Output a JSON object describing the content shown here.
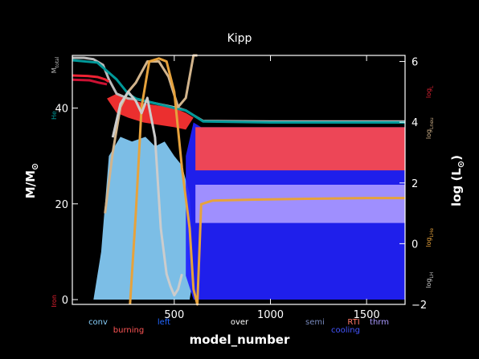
{
  "chart_data": {
    "type": "area",
    "title": "Kipp",
    "xlabel": "model_number",
    "ylabel_left": "M/M",
    "ylabel_left_subscript": "⊙",
    "ylabel_right": "log (L",
    "ylabel_right_subscript": "⊙",
    "ylabel_right_close": ")",
    "xlim": [
      -30,
      1700
    ],
    "ylim_left": [
      -1,
      51
    ],
    "ylim_right": [
      -2,
      6.2
    ],
    "x_ticks": [
      500,
      1000,
      1500
    ],
    "y_ticks_left": [
      0,
      20,
      40
    ],
    "y_ticks_right": [
      -2,
      0,
      2,
      4,
      6
    ],
    "x_tick_labels": [
      "500",
      "1000",
      "1500"
    ],
    "y_tick_labels_left": [
      "0",
      "20",
      "40"
    ],
    "y_tick_labels_right": [
      "−2",
      "0",
      "2",
      "4",
      "6"
    ],
    "left_axis_labels": [
      {
        "text": "M",
        "sub": "total",
        "color": "#bbbbbb",
        "y": 49
      },
      {
        "text": "He",
        "sub": "",
        "color": "#009999",
        "y": 38.5
      },
      {
        "text": "Iron",
        "sub": "",
        "color": "#ee2233",
        "y": -0.3
      }
    ],
    "right_axis_labels": [
      {
        "text": "log",
        "sub": "L",
        "color": "#dd2233",
        "y": 5.0
      },
      {
        "text": "log",
        "sub": "Lneu",
        "color": "#d2b48c",
        "y": 3.8
      },
      {
        "text": "log",
        "sub": "LHe",
        "color": "#e6a23c",
        "y": 0.2
      },
      {
        "text": "log",
        "sub": "LH",
        "color": "#cccccc",
        "y": -1.2
      }
    ],
    "legend": [
      {
        "label": "conv",
        "color": "#87cefa"
      },
      {
        "label": "burning",
        "color": "#ff5555"
      },
      {
        "label": "left",
        "color": "#2266ff"
      },
      {
        "label": "over",
        "color": "#ffffff"
      },
      {
        "label": "semi",
        "color": "#7788bb"
      },
      {
        "label": "cooling",
        "color": "#4455ff"
      },
      {
        "label": "RTI",
        "color": "#ff7766"
      },
      {
        "label": "thrm",
        "color": "#aa99ff"
      }
    ],
    "series": [
      {
        "name": "M_total",
        "axis": "left",
        "color": "#bbbbbb",
        "x": [
          -30,
          30,
          80,
          130,
          160,
          200,
          260,
          310,
          400,
          520,
          560,
          600,
          650,
          1000,
          1700
        ],
        "y": [
          50.5,
          50.5,
          50.2,
          49,
          46,
          43,
          42,
          41.8,
          41,
          40,
          39.5,
          38.5,
          37.3,
          37.2,
          37.2
        ]
      },
      {
        "name": "He core",
        "axis": "left",
        "color": "#009999",
        "x": [
          -30,
          100,
          200,
          260,
          300,
          400,
          500,
          560,
          600,
          650,
          1000,
          1700
        ],
        "y": [
          50,
          49.5,
          46,
          43,
          42,
          41,
          40,
          39.5,
          38.5,
          37.2,
          37,
          37
        ]
      },
      {
        "name": "Iron core",
        "axis": "left",
        "color": "#ee2233",
        "x": [
          -30,
          50,
          100,
          140,
          160
        ],
        "y": [
          46.8,
          46.7,
          46.5,
          46,
          45.5
        ]
      },
      {
        "name": "log L",
        "axis": "right",
        "color": "#cc1133",
        "x": [
          -30,
          60,
          110,
          150
        ],
        "y": [
          5.4,
          5.38,
          5.3,
          5.25
        ]
      },
      {
        "name": "log Lneu",
        "axis": "right",
        "color": "#d2b48c",
        "x": [
          140,
          180,
          220,
          260,
          300,
          360,
          420,
          470,
          520,
          560,
          600,
          620
        ],
        "y": [
          1.0,
          3.0,
          4.5,
          5.0,
          5.3,
          6.0,
          6.0,
          5.5,
          4.5,
          4.8,
          6.2,
          6.2
        ]
      },
      {
        "name": "log LHe",
        "axis": "right",
        "color": "#e6a23c",
        "x": [
          270,
          300,
          330,
          370,
          420,
          460,
          500,
          540,
          580,
          600,
          620,
          640,
          700,
          900,
          1200,
          1500,
          1700
        ],
        "y": [
          -2,
          1.0,
          4.5,
          6.0,
          6.1,
          6.0,
          5.0,
          2.5,
          0.5,
          -1.5,
          -2,
          1.3,
          1.42,
          1.45,
          1.48,
          1.5,
          1.5
        ]
      },
      {
        "name": "log LH",
        "axis": "right",
        "color": "#cccccc",
        "x": [
          180,
          220,
          260,
          300,
          330,
          360,
          400,
          430,
          460,
          480,
          500,
          520,
          540
        ],
        "y": [
          3.5,
          4.6,
          5.0,
          4.7,
          4.3,
          4.8,
          3.5,
          0.5,
          -1.0,
          -1.4,
          -1.7,
          -1.5,
          -1.0
        ]
      }
    ],
    "regions": [
      {
        "kind": "conv",
        "color": "#87cefa",
        "x": [
          80,
          120,
          160,
          220,
          280,
          350,
          400,
          450,
          500,
          540,
          580,
          600,
          580,
          540,
          500,
          400,
          300,
          200,
          130,
          100,
          90
        ],
        "y": [
          0,
          10,
          30,
          34,
          33,
          34,
          32,
          33,
          30,
          28,
          22,
          5,
          0,
          0,
          0,
          0,
          0,
          0,
          0,
          0,
          0
        ]
      },
      {
        "kind": "burning",
        "color": "#ff3333",
        "x": [
          150,
          200,
          260,
          340,
          420,
          500,
          560,
          600,
          560,
          500,
          420,
          340,
          260,
          200
        ],
        "y": [
          42,
          43,
          42,
          41,
          40.5,
          40,
          39,
          38,
          35.5,
          36,
          36.5,
          37,
          38,
          39
        ]
      },
      {
        "kind": "cooling",
        "color": "#2222ff",
        "x": [
          560,
          600,
          640,
          1700,
          1700,
          640,
          600,
          560
        ],
        "y": [
          30,
          37,
          36,
          36,
          0,
          0,
          0,
          5
        ]
      },
      {
        "kind": "burning",
        "color": "#ff4a4a",
        "x": [
          610,
          1700,
          1700,
          610
        ],
        "y": [
          36,
          36,
          27,
          27
        ]
      },
      {
        "kind": "thrm",
        "color": "#aa99ff",
        "x": [
          610,
          1700,
          1700,
          610
        ],
        "y": [
          24,
          24,
          16,
          16
        ]
      }
    ]
  }
}
